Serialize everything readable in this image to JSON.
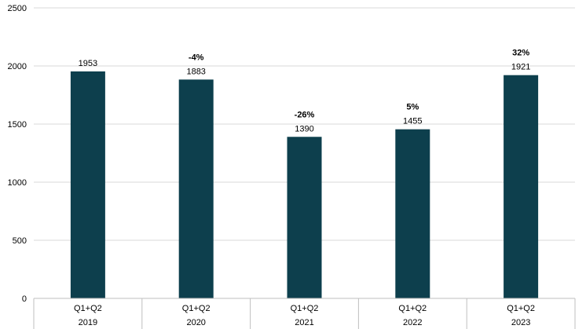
{
  "chart_data": {
    "type": "bar",
    "title": "",
    "xlabel": "",
    "ylabel": "",
    "ylim": [
      0,
      2500
    ],
    "yticks": [
      0,
      500,
      1000,
      1500,
      2000,
      2500
    ],
    "grid": true,
    "legend": "none",
    "categories": [
      {
        "period": "Q1+Q2",
        "year": "2019"
      },
      {
        "period": "Q1+Q2",
        "year": "2020"
      },
      {
        "period": "Q1+Q2",
        "year": "2021"
      },
      {
        "period": "Q1+Q2",
        "year": "2022"
      },
      {
        "period": "Q1+Q2",
        "year": "2023"
      }
    ],
    "values": [
      1953,
      1883,
      1390,
      1455,
      1921
    ],
    "value_labels": [
      "1953",
      "1883",
      "1390",
      "1455",
      "1921"
    ],
    "change_labels": [
      "",
      "-4%",
      "-26%",
      "5%",
      "32%"
    ],
    "colors": {
      "bar": "#0d3f4d",
      "grid": "#d9d9d9",
      "axis": "#bfbfbf",
      "text": "#000000"
    }
  }
}
